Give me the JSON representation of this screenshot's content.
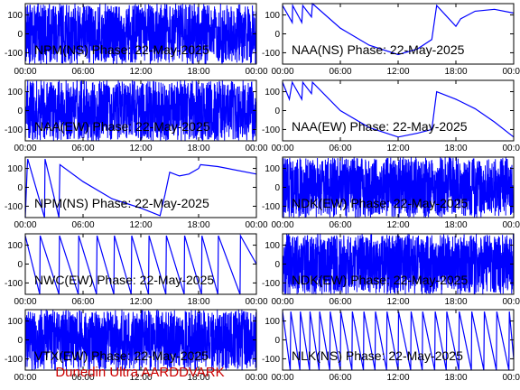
{
  "footer": "Dunedin Ultra AARDDVARK",
  "colors": {
    "trace": "#0000ff",
    "footer": "#cc0000",
    "axes": "#000000"
  },
  "chart_data": [
    {
      "type": "line",
      "title": "NPM(NS) Phase: 22-May-2025",
      "ylim": [
        -160,
        160
      ],
      "yticks": [
        -100,
        0,
        100
      ],
      "xticks": [
        "00:00",
        "06:00",
        "12:00",
        "18:00",
        "00:00"
      ],
      "xlim_hours": [
        0,
        24
      ],
      "style": "dense",
      "series": [
        {
          "x": [
            0.0,
            1.5,
            2.2,
            3.0,
            6.0,
            12.0,
            18.0,
            24.0
          ],
          "y": [
            150,
            -150,
            150,
            -150,
            150,
            -150,
            150,
            0
          ]
        }
      ]
    },
    {
      "type": "line",
      "title": "NAA(NS) Phase: 22-May-2025",
      "ylim": [
        -160,
        160
      ],
      "yticks": [
        -100,
        0,
        100
      ],
      "xticks": [
        "00:00",
        "06:00",
        "12:00",
        "18:00",
        "00:00"
      ],
      "xlim_hours": [
        0,
        24
      ],
      "style": "sawtooth",
      "series": [
        {
          "x": [
            0.0,
            1.0,
            1.05,
            2.0,
            2.1,
            3.0,
            3.1,
            6.0,
            9.0,
            12.0,
            14.0,
            15.5,
            16.0,
            18.0,
            18.5,
            20.0,
            22.0,
            24.0
          ],
          "y": [
            150,
            60,
            150,
            60,
            150,
            90,
            160,
            30,
            -60,
            -110,
            -80,
            -30,
            150,
            40,
            80,
            120,
            130,
            110
          ]
        }
      ]
    },
    {
      "type": "line",
      "title": "NAA(EW) Phase: 22-May-2025",
      "ylim": [
        -160,
        160
      ],
      "yticks": [
        -100,
        0,
        100
      ],
      "xticks": [
        "00:00",
        "06:00",
        "12:00",
        "18:00",
        "00:00"
      ],
      "xlim_hours": [
        0,
        24
      ],
      "style": "dense",
      "series": [
        {
          "x": [
            0.0,
            5.0,
            12.0,
            18.0,
            23.0,
            24.0
          ],
          "y": [
            150,
            -150,
            150,
            -150,
            150,
            -100
          ]
        }
      ]
    },
    {
      "type": "line",
      "title": "NAA(EW) Phase: 22-May-2025",
      "ylim": [
        -160,
        160
      ],
      "yticks": [
        -100,
        0,
        100
      ],
      "xticks": [
        "00:00",
        "06:00",
        "12:00",
        "18:00",
        "00:00"
      ],
      "xlim_hours": [
        0,
        24
      ],
      "style": "sawtooth",
      "series": [
        {
          "x": [
            0.0,
            0.7,
            1.0,
            2.0,
            2.1,
            3.0,
            3.1,
            6.0,
            9.0,
            12.0,
            14.0,
            15.5,
            16.0,
            18.0,
            20.0,
            22.0,
            24.0
          ],
          "y": [
            150,
            60,
            150,
            60,
            150,
            90,
            150,
            0,
            -90,
            -140,
            -120,
            -100,
            100,
            60,
            10,
            -60,
            -140
          ]
        }
      ]
    },
    {
      "type": "line",
      "title": "NPM(NS) Phase: 22-May-2025",
      "ylim": [
        -160,
        160
      ],
      "yticks": [
        -100,
        0,
        100
      ],
      "xticks": [
        "00:00",
        "06:00",
        "12:00",
        "18:00",
        "00:00"
      ],
      "xlim_hours": [
        0,
        24
      ],
      "style": "sawtooth",
      "series": [
        {
          "x": [
            0.0,
            0.2,
            0.25,
            2.0,
            2.05,
            3.5,
            3.6,
            6.0,
            9.0,
            12.0,
            14.0,
            14.5,
            15.0,
            16.0,
            17.0,
            18.0,
            18.2,
            20.0,
            24.0
          ],
          "y": [
            -160,
            100,
            150,
            -160,
            150,
            -160,
            120,
            30,
            -60,
            -110,
            -150,
            -40,
            80,
            60,
            70,
            100,
            120,
            110,
            70
          ]
        }
      ]
    },
    {
      "type": "line",
      "title": "NDK(EW) Phase: 22-May-2025",
      "ylim": [
        -160,
        160
      ],
      "yticks": [
        -100,
        0,
        100
      ],
      "xticks": [
        "00:00",
        "06:00",
        "12:00",
        "18:00",
        "00:00"
      ],
      "xlim_hours": [
        0,
        24
      ],
      "style": "dense",
      "series": [
        {
          "x": [
            0.0,
            12.0,
            24.0
          ],
          "y": [
            150,
            -150,
            150
          ]
        }
      ]
    },
    {
      "type": "line",
      "title": "NWC(EW) Phase: 22-May-2025",
      "ylim": [
        -160,
        160
      ],
      "yticks": [
        -100,
        0,
        100
      ],
      "xticks": [
        "00:00",
        "06:00",
        "12:00",
        "18:00",
        "00:00"
      ],
      "xlim_hours": [
        0,
        24
      ],
      "style": "sawtooth",
      "series": [
        {
          "x": [
            0.0,
            1.5,
            1.55,
            3.5,
            3.55,
            5.5,
            5.55,
            7.4,
            7.45,
            9.2,
            9.25,
            11.0,
            11.05,
            12.8,
            12.85,
            14.6,
            14.65,
            16.5,
            16.55,
            18.3,
            18.35,
            20.0,
            20.05,
            22.3,
            22.35,
            24.0
          ],
          "y": [
            150,
            -160,
            150,
            -160,
            150,
            -160,
            150,
            -160,
            150,
            -160,
            150,
            -160,
            150,
            -160,
            150,
            -160,
            150,
            -160,
            150,
            -160,
            150,
            -160,
            150,
            -160,
            150,
            0
          ]
        }
      ]
    },
    {
      "type": "line",
      "title": "NDK(EW) Phase: 22-May-2025",
      "ylim": [
        -160,
        160
      ],
      "yticks": [
        -100,
        0,
        100
      ],
      "xticks": [
        "00:00",
        "06:00",
        "12:00",
        "18:00",
        "00:00"
      ],
      "xlim_hours": [
        0,
        24
      ],
      "style": "dense",
      "series": [
        {
          "x": [
            0.0,
            12.0,
            24.0
          ],
          "y": [
            150,
            -150,
            150
          ]
        }
      ]
    },
    {
      "type": "line",
      "title": "VTX(EW) Phase: 22-May-2025",
      "ylim": [
        -160,
        160
      ],
      "yticks": [
        -100,
        0,
        100
      ],
      "xticks": [
        "00:00",
        "06:00",
        "12:00",
        "18:00",
        "00:00"
      ],
      "xlim_hours": [
        0,
        24
      ],
      "style": "dense",
      "series": [
        {
          "x": [
            0.0,
            12.0,
            24.0
          ],
          "y": [
            150,
            -150,
            150
          ]
        }
      ]
    },
    {
      "type": "line",
      "title": "NLK(NS) Phase: 22-May-2025",
      "ylim": [
        -160,
        160
      ],
      "yticks": [
        -100,
        0,
        100
      ],
      "xticks": [
        "00:00",
        "06:00",
        "12:00",
        "18:00",
        "00:00"
      ],
      "xlim_hours": [
        0,
        24
      ],
      "style": "sawtooth",
      "series": [
        {
          "x": [
            0.0,
            0.8,
            0.85,
            1.8,
            1.85,
            2.8,
            2.85,
            3.8,
            3.85,
            4.9,
            4.95,
            6.0,
            6.05,
            7.2,
            7.25,
            8.4,
            8.45,
            9.6,
            9.65,
            10.8,
            10.85,
            12.0,
            12.05,
            13.3,
            13.35,
            14.5,
            14.55,
            15.8,
            15.85,
            17.0,
            17.05,
            18.3,
            18.35,
            19.6,
            19.65,
            20.9,
            20.95,
            22.2,
            22.25,
            23.5,
            23.55,
            24.0
          ],
          "y": [
            150,
            -160,
            150,
            -160,
            150,
            -160,
            150,
            -160,
            150,
            -160,
            150,
            -160,
            150,
            -160,
            150,
            -160,
            150,
            -160,
            150,
            -160,
            150,
            -160,
            150,
            -160,
            150,
            -160,
            150,
            -160,
            150,
            -160,
            150,
            -160,
            150,
            -160,
            150,
            -160,
            150,
            -160,
            150,
            -160,
            150,
            -100
          ]
        }
      ]
    }
  ]
}
